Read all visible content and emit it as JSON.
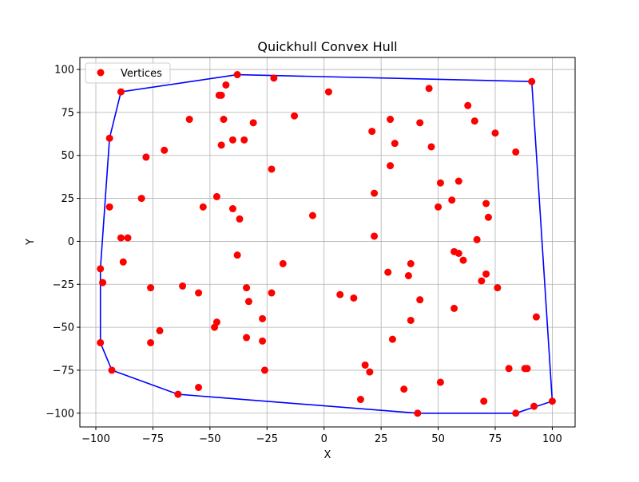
{
  "chart_data": {
    "type": "scatter",
    "title": "Quickhull Convex Hull",
    "xlabel": "X",
    "ylabel": "Y",
    "xlim": [
      -107,
      110
    ],
    "ylim": [
      -108,
      107
    ],
    "xticks": [
      -100,
      -75,
      -50,
      -25,
      0,
      25,
      50,
      75,
      100
    ],
    "yticks": [
      -100,
      -75,
      -50,
      -25,
      0,
      25,
      50,
      75,
      100
    ],
    "grid": true,
    "legend": {
      "position": "top-left",
      "entries": [
        "Vertices"
      ]
    },
    "series": [
      {
        "name": "Vertices",
        "color": "#ff0000",
        "points": [
          [
            -38,
            97
          ],
          [
            -22,
            95
          ],
          [
            -43,
            91
          ],
          [
            -89,
            87
          ],
          [
            -46,
            85
          ],
          [
            -45,
            85
          ],
          [
            2,
            87
          ],
          [
            -59,
            71
          ],
          [
            -44,
            71
          ],
          [
            -31,
            69
          ],
          [
            -13,
            73
          ],
          [
            -94,
            60
          ],
          [
            -40,
            59
          ],
          [
            -35,
            59
          ],
          [
            -45,
            56
          ],
          [
            -70,
            53
          ],
          [
            -78,
            49
          ],
          [
            -23,
            42
          ],
          [
            -80,
            25
          ],
          [
            -47,
            26
          ],
          [
            -53,
            20
          ],
          [
            -94,
            20
          ],
          [
            -40,
            19
          ],
          [
            -37,
            13
          ],
          [
            -5,
            15
          ],
          [
            -89,
            2
          ],
          [
            -86,
            2
          ],
          [
            -38,
            -8
          ],
          [
            -88,
            -12
          ],
          [
            -98,
            -16
          ],
          [
            -97,
            -24
          ],
          [
            -76,
            -27
          ],
          [
            -62,
            -26
          ],
          [
            -55,
            -30
          ],
          [
            -34,
            -27
          ],
          [
            -23,
            -30
          ],
          [
            -33,
            -35
          ],
          [
            -18,
            -13
          ],
          [
            -47,
            -47
          ],
          [
            -48,
            -50
          ],
          [
            -72,
            -52
          ],
          [
            -76,
            -59
          ],
          [
            -98,
            -59
          ],
          [
            -34,
            -56
          ],
          [
            -27,
            -45
          ],
          [
            -27,
            -58
          ],
          [
            -93,
            -75
          ],
          [
            -26,
            -75
          ],
          [
            -64,
            -89
          ],
          [
            -55,
            -85
          ],
          [
            46,
            89
          ],
          [
            91,
            93
          ],
          [
            63,
            79
          ],
          [
            29,
            71
          ],
          [
            42,
            69
          ],
          [
            66,
            70
          ],
          [
            75,
            63
          ],
          [
            21,
            64
          ],
          [
            31,
            57
          ],
          [
            47,
            55
          ],
          [
            84,
            52
          ],
          [
            29,
            44
          ],
          [
            51,
            34
          ],
          [
            59,
            35
          ],
          [
            22,
            28
          ],
          [
            56,
            24
          ],
          [
            71,
            22
          ],
          [
            50,
            20
          ],
          [
            72,
            14
          ],
          [
            22,
            3
          ],
          [
            67,
            1
          ],
          [
            57,
            -6
          ],
          [
            59,
            -7
          ],
          [
            61,
            -11
          ],
          [
            38,
            -13
          ],
          [
            28,
            -18
          ],
          [
            37,
            -20
          ],
          [
            71,
            -19
          ],
          [
            69,
            -23
          ],
          [
            76,
            -27
          ],
          [
            7,
            -31
          ],
          [
            13,
            -33
          ],
          [
            42,
            -34
          ],
          [
            57,
            -39
          ],
          [
            38,
            -46
          ],
          [
            93,
            -44
          ],
          [
            30,
            -57
          ],
          [
            18,
            -72
          ],
          [
            20,
            -76
          ],
          [
            51,
            -82
          ],
          [
            81,
            -74
          ],
          [
            88,
            -74
          ],
          [
            89,
            -74
          ],
          [
            35,
            -86
          ],
          [
            16,
            -92
          ],
          [
            70,
            -93
          ],
          [
            100,
            -93
          ],
          [
            92,
            -96
          ],
          [
            84,
            -100
          ],
          [
            41,
            -100
          ]
        ]
      }
    ],
    "hull": {
      "color": "#0000ff",
      "points": [
        [
          -38,
          97
        ],
        [
          91,
          93
        ],
        [
          100,
          -93
        ],
        [
          84,
          -100
        ],
        [
          41,
          -100
        ],
        [
          -64,
          -89
        ],
        [
          -93,
          -75
        ],
        [
          -98,
          -59
        ],
        [
          -98,
          -16
        ],
        [
          -94,
          60
        ],
        [
          -89,
          87
        ],
        [
          -38,
          97
        ]
      ]
    }
  }
}
